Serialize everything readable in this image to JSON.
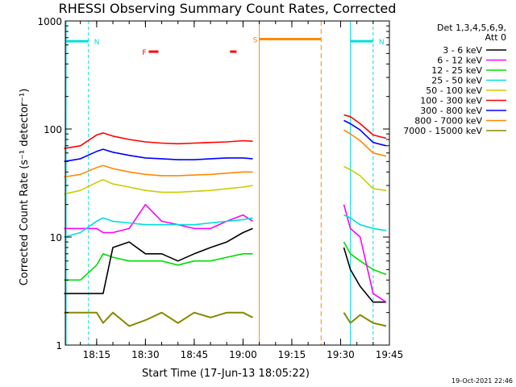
{
  "chart_data": {
    "type": "line",
    "title": "RHESSI Observing Summary Count Rates, Corrected",
    "xlabel": "Start Time (17-Jun-13 18:05:22)",
    "ylabel": "Corrected Count Rate (s⁻¹ detector⁻¹)",
    "y_scale": "log",
    "ylim": [
      1,
      1000
    ],
    "xlim": [
      "18:05:22",
      "19:45:00"
    ],
    "x_ticks": [
      "18:15",
      "18:30",
      "18:45",
      "19:00",
      "19:15",
      "19:30",
      "19:45"
    ],
    "y_ticks": [
      "1",
      "10",
      "100",
      "1000"
    ],
    "legend": {
      "placement": "right",
      "header": [
        "Det 1,3,4,5,6,9,",
        "Att 0"
      ]
    },
    "data_gap": [
      "19:05",
      "19:31"
    ],
    "series": [
      {
        "name": "3 - 6 keV",
        "color": "#000000",
        "x": [
          "18:05",
          "18:10",
          "18:15",
          "18:17",
          "18:20",
          "18:25",
          "18:30",
          "18:35",
          "18:40",
          "18:45",
          "18:50",
          "18:55",
          "19:00",
          "19:03",
          "19:31",
          "19:33",
          "19:36",
          "19:40",
          "19:44"
        ],
        "values": [
          3,
          3,
          3,
          3,
          8,
          9,
          7,
          7,
          6,
          7,
          8,
          9,
          11,
          12,
          8,
          5,
          3.5,
          2.5,
          2.5
        ]
      },
      {
        "name": "6 - 12 keV",
        "color": "#ff00ff",
        "x": [
          "18:05",
          "18:10",
          "18:15",
          "18:17",
          "18:20",
          "18:25",
          "18:30",
          "18:35",
          "18:40",
          "18:45",
          "18:50",
          "18:55",
          "19:00",
          "19:03",
          "19:31",
          "19:33",
          "19:36",
          "19:40",
          "19:44"
        ],
        "values": [
          12,
          12,
          12,
          11,
          11,
          12,
          20,
          14,
          13,
          12,
          12,
          14,
          16,
          14,
          20,
          12,
          10,
          3,
          2.5
        ]
      },
      {
        "name": "12 - 25 keV",
        "color": "#00dd00",
        "x": [
          "18:05",
          "18:10",
          "18:15",
          "18:17",
          "18:20",
          "18:25",
          "18:30",
          "18:35",
          "18:40",
          "18:45",
          "18:50",
          "18:55",
          "19:00",
          "19:03",
          "19:31",
          "19:33",
          "19:36",
          "19:40",
          "19:44"
        ],
        "values": [
          4,
          4,
          5.5,
          7,
          6.5,
          6,
          6,
          6,
          5.5,
          6,
          6,
          6.5,
          7,
          7,
          9,
          7,
          6,
          5,
          4.5
        ]
      },
      {
        "name": "25 - 50 keV",
        "color": "#00dddd",
        "x": [
          "18:05",
          "18:10",
          "18:15",
          "18:17",
          "18:20",
          "18:25",
          "18:30",
          "18:35",
          "18:40",
          "18:45",
          "18:50",
          "18:55",
          "19:00",
          "19:03",
          "19:31",
          "19:33",
          "19:36",
          "19:40",
          "19:44"
        ],
        "values": [
          10,
          11,
          14,
          15,
          14,
          13.5,
          13,
          13,
          13,
          13,
          13.5,
          14,
          14.5,
          15,
          16,
          15,
          13,
          12,
          11.5
        ]
      },
      {
        "name": "50 - 100 keV",
        "color": "#cccc00",
        "x": [
          "18:05",
          "18:10",
          "18:15",
          "18:17",
          "18:20",
          "18:25",
          "18:30",
          "18:35",
          "18:40",
          "18:45",
          "18:50",
          "18:55",
          "19:00",
          "19:03",
          "19:31",
          "19:33",
          "19:36",
          "19:40",
          "19:44"
        ],
        "values": [
          25,
          27,
          32,
          34,
          31,
          29,
          27,
          26,
          26,
          26.5,
          27,
          28,
          29,
          30,
          45,
          42,
          37,
          28,
          27
        ]
      },
      {
        "name": "100 - 300 keV",
        "color": "#ff0000",
        "x": [
          "18:05",
          "18:10",
          "18:15",
          "18:17",
          "18:20",
          "18:25",
          "18:30",
          "18:35",
          "18:40",
          "18:45",
          "18:50",
          "18:55",
          "19:00",
          "19:03",
          "19:31",
          "19:33",
          "19:36",
          "19:40",
          "19:44"
        ],
        "values": [
          66,
          70,
          88,
          92,
          86,
          80,
          76,
          74,
          73,
          74,
          75,
          76,
          78,
          77,
          135,
          130,
          112,
          88,
          82
        ]
      },
      {
        "name": "300 - 800 keV",
        "color": "#0000ff",
        "x": [
          "18:05",
          "18:10",
          "18:15",
          "18:17",
          "18:20",
          "18:25",
          "18:30",
          "18:35",
          "18:40",
          "18:45",
          "18:50",
          "18:55",
          "19:00",
          "19:03",
          "19:31",
          "19:33",
          "19:36",
          "19:40",
          "19:44"
        ],
        "values": [
          50,
          53,
          62,
          65,
          61,
          57,
          54,
          53,
          52,
          52,
          53,
          54,
          54,
          53,
          120,
          112,
          98,
          75,
          70
        ]
      },
      {
        "name": "800 - 7000 keV",
        "color": "#ff8800",
        "x": [
          "18:05",
          "18:10",
          "18:15",
          "18:17",
          "18:20",
          "18:25",
          "18:30",
          "18:35",
          "18:40",
          "18:45",
          "18:50",
          "18:55",
          "19:00",
          "19:03",
          "19:31",
          "19:33",
          "19:36",
          "19:40",
          "19:44"
        ],
        "values": [
          36,
          38,
          44,
          46,
          43,
          40,
          38,
          37,
          37,
          37.5,
          38,
          39,
          40,
          40,
          98,
          90,
          78,
          60,
          56
        ]
      },
      {
        "name": "7000 - 15000 keV",
        "color": "#888800",
        "x": [
          "18:05",
          "18:10",
          "18:15",
          "18:17",
          "18:20",
          "18:25",
          "18:30",
          "18:35",
          "18:40",
          "18:45",
          "18:50",
          "18:55",
          "19:00",
          "19:03",
          "19:31",
          "19:33",
          "19:36",
          "19:40",
          "19:44"
        ],
        "values": [
          2,
          2,
          2,
          1.6,
          2,
          1.5,
          1.7,
          2,
          1.6,
          2,
          1.8,
          2,
          2,
          1.8,
          2,
          1.6,
          1.9,
          1.6,
          1.5
        ]
      }
    ],
    "annotations": [
      {
        "label": "N",
        "color": "#00dddd",
        "start": "18:05:22",
        "end": "18:12:30",
        "level": 650
      },
      {
        "label": "N",
        "color": "#00dddd",
        "start": "19:33:00",
        "end": "19:40:00",
        "level": 650
      },
      {
        "label": "F",
        "color": "#ff0000",
        "start": "18:31",
        "end": "18:34",
        "level": 520
      },
      {
        "label": "",
        "color": "#ff0000",
        "start": "18:56",
        "end": "18:58",
        "level": 520
      },
      {
        "label": "S",
        "color": "#ff8800",
        "start": "19:05",
        "end": "19:24",
        "level": 680
      }
    ],
    "footer": "19-Oct-2021 22:46"
  }
}
